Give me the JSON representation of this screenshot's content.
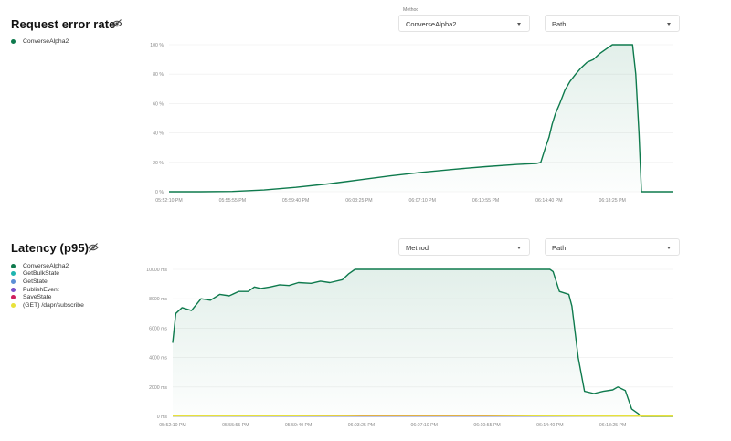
{
  "error_panel": {
    "title": "Request error rate",
    "visibility_icon": "eye-off-icon",
    "legend": [
      {
        "label": "ConverseAlpha2",
        "color": "#0e7a4d"
      }
    ],
    "method_select": {
      "label": "Method",
      "value": "ConverseAlpha2"
    },
    "path_select": {
      "value": "Path"
    }
  },
  "latency_panel": {
    "title": "Latency (p95)",
    "visibility_icon": "eye-off-icon",
    "legend": [
      {
        "label": "ConverseAlpha2",
        "color": "#0e7a4d"
      },
      {
        "label": "GetBulkState",
        "color": "#1fb5b0"
      },
      {
        "label": "GetState",
        "color": "#5b8fd6"
      },
      {
        "label": "PublishEvent",
        "color": "#7a4fc9"
      },
      {
        "label": "SaveState",
        "color": "#d01f5e"
      },
      {
        "label": "(GET) /dapr/subscribe",
        "color": "#e8e23a"
      }
    ],
    "method_select": {
      "value": "Method"
    },
    "path_select": {
      "value": "Path"
    }
  },
  "chart_data": [
    {
      "type": "area",
      "x_ticks": [
        "05:52:10 PM",
        "05:55:55 PM",
        "05:59:40 PM",
        "06:03:25 PM",
        "06:07:10 PM",
        "06:10:55 PM",
        "06:14:40 PM",
        "06:18:25 PM"
      ],
      "y_ticks": [
        "0 %",
        "20 %",
        "40 %",
        "60 %",
        "80 %",
        "100 %"
      ],
      "ylim": [
        0,
        100
      ],
      "grid": true,
      "series": [
        {
          "name": "ConverseAlpha2",
          "color": "#0e7a4d",
          "points": [
            [
              0,
              0
            ],
            [
              0.5,
              0
            ],
            [
              1.0,
              0.2
            ],
            [
              1.5,
              1.2
            ],
            [
              2.0,
              3.0
            ],
            [
              2.5,
              5.3
            ],
            [
              3.0,
              8.0
            ],
            [
              3.5,
              10.8
            ],
            [
              4.0,
              13.2
            ],
            [
              4.5,
              15.3
            ],
            [
              5.0,
              17.1
            ],
            [
              5.5,
              18.6
            ],
            [
              5.8,
              19.2
            ],
            [
              5.87,
              20.0
            ],
            [
              5.95,
              31
            ],
            [
              6.0,
              37
            ],
            [
              6.05,
              46
            ],
            [
              6.1,
              53
            ],
            [
              6.17,
              60
            ],
            [
              6.25,
              69
            ],
            [
              6.33,
              75
            ],
            [
              6.42,
              80
            ],
            [
              6.5,
              84
            ],
            [
              6.6,
              88
            ],
            [
              6.7,
              90
            ],
            [
              6.8,
              94
            ],
            [
              6.9,
              97
            ],
            [
              7.0,
              100
            ],
            [
              7.1,
              100
            ],
            [
              7.32,
              100
            ],
            [
              7.37,
              80
            ],
            [
              7.42,
              40
            ],
            [
              7.46,
              0
            ],
            [
              7.6,
              0
            ],
            [
              7.95,
              0
            ]
          ]
        }
      ]
    },
    {
      "type": "area",
      "x_ticks": [
        "05:52:10 PM",
        "05:55:55 PM",
        "05:59:40 PM",
        "06:03:25 PM",
        "06:07:10 PM",
        "06:10:55 PM",
        "06:14:40 PM",
        "06:18:25 PM"
      ],
      "y_ticks": [
        "0 ms",
        "2000 ms",
        "4000 ms",
        "6000 ms",
        "8000 ms",
        "10000 ms"
      ],
      "ylim": [
        0,
        10000
      ],
      "grid": true,
      "series": [
        {
          "name": "ConverseAlpha2",
          "color": "#0e7a4d",
          "points": [
            [
              0,
              5000
            ],
            [
              0.05,
              7000
            ],
            [
              0.15,
              7400
            ],
            [
              0.3,
              7200
            ],
            [
              0.45,
              8000
            ],
            [
              0.6,
              7900
            ],
            [
              0.75,
              8300
            ],
            [
              0.9,
              8200
            ],
            [
              1.05,
              8500
            ],
            [
              1.2,
              8500
            ],
            [
              1.3,
              8800
            ],
            [
              1.4,
              8700
            ],
            [
              1.55,
              8800
            ],
            [
              1.7,
              8950
            ],
            [
              1.85,
              8900
            ],
            [
              2.0,
              9100
            ],
            [
              2.2,
              9050
            ],
            [
              2.35,
              9200
            ],
            [
              2.5,
              9100
            ],
            [
              2.7,
              9300
            ],
            [
              2.8,
              9700
            ],
            [
              2.9,
              10000
            ],
            [
              4.9,
              10000
            ],
            [
              5.0,
              10000
            ],
            [
              5.15,
              10000
            ],
            [
              5.9,
              10000
            ],
            [
              6.0,
              10000
            ],
            [
              6.05,
              9850
            ],
            [
              6.15,
              8500
            ],
            [
              6.3,
              8300
            ],
            [
              6.35,
              7500
            ],
            [
              6.45,
              4000
            ],
            [
              6.55,
              1700
            ],
            [
              6.7,
              1550
            ],
            [
              6.85,
              1700
            ],
            [
              7.0,
              1800
            ],
            [
              7.08,
              2000
            ],
            [
              7.2,
              1750
            ],
            [
              7.3,
              500
            ],
            [
              7.4,
              200
            ],
            [
              7.45,
              0
            ],
            [
              7.95,
              0
            ]
          ]
        },
        {
          "name": "GetBulkState",
          "color": "#1fb5b0",
          "points": [
            [
              0,
              10
            ],
            [
              7.95,
              10
            ]
          ]
        },
        {
          "name": "GetState",
          "color": "#5b8fd6",
          "points": [
            [
              0,
              20
            ],
            [
              7.95,
              20
            ]
          ]
        },
        {
          "name": "PublishEvent",
          "color": "#7a4fc9",
          "points": [
            [
              0,
              15
            ],
            [
              7.95,
              15
            ]
          ]
        },
        {
          "name": "SaveState",
          "color": "#d01f5e",
          "points": [
            [
              0,
              25
            ],
            [
              7.95,
              25
            ]
          ]
        },
        {
          "name": "(GET) /dapr/subscribe",
          "color": "#e8e23a",
          "points": [
            [
              0,
              30
            ],
            [
              3.0,
              60
            ],
            [
              5.0,
              60
            ],
            [
              6.5,
              40
            ],
            [
              7.95,
              20
            ]
          ]
        }
      ]
    }
  ]
}
